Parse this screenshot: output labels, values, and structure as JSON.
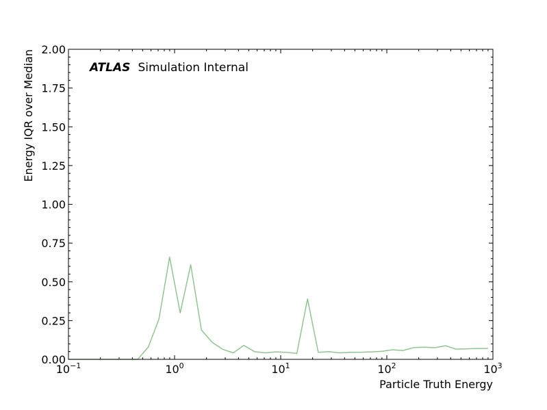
{
  "chart_data": {
    "type": "line",
    "title": "",
    "xlabel": "Particle Truth Energy",
    "ylabel": "Energy IQR over Median",
    "xscale": "log",
    "xlim": [
      0.1,
      1000
    ],
    "ylim": [
      0,
      2.0
    ],
    "xtick_values": [
      0.1,
      1,
      10,
      100,
      1000
    ],
    "xtick_labels": [
      {
        "base": "10",
        "exp": "−1"
      },
      {
        "base": "10",
        "exp": "0"
      },
      {
        "base": "10",
        "exp": "1"
      },
      {
        "base": "10",
        "exp": "2"
      },
      {
        "base": "10",
        "exp": "3"
      }
    ],
    "ytick_values": [
      0,
      0.25,
      0.5,
      0.75,
      1.0,
      1.25,
      1.5,
      1.75,
      2.0
    ],
    "ytick_labels": [
      "0.00",
      "0.25",
      "0.50",
      "0.75",
      "1.00",
      "1.25",
      "1.50",
      "1.75",
      "2.00"
    ],
    "grid": false,
    "annotation": {
      "bold": "ATLAS",
      "rest": "Simulation Internal"
    },
    "series": [
      {
        "color": "#8fc68f",
        "x": [
          0.1,
          0.126,
          0.159,
          0.2,
          0.252,
          0.318,
          0.4,
          0.45,
          0.566,
          0.713,
          0.897,
          1.13,
          1.42,
          1.79,
          2.26,
          2.84,
          3.57,
          4.5,
          5.66,
          7.13,
          8.97,
          11.3,
          14.2,
          17.9,
          22.6,
          28.4,
          35.7,
          45.0,
          56.6,
          71.3,
          89.7,
          113,
          142,
          179,
          226,
          284,
          357,
          450,
          566,
          713,
          900
        ],
        "y": [
          0.0,
          0.0,
          0.0,
          0.0,
          0.0,
          0.0,
          0.0,
          0.0,
          0.08,
          0.26,
          0.66,
          0.3,
          0.61,
          0.19,
          0.11,
          0.065,
          0.042,
          0.09,
          0.05,
          0.042,
          0.048,
          0.045,
          0.038,
          0.39,
          0.045,
          0.05,
          0.042,
          0.045,
          0.046,
          0.048,
          0.052,
          0.062,
          0.057,
          0.076,
          0.078,
          0.075,
          0.088,
          0.066,
          0.068,
          0.07,
          0.07
        ]
      }
    ]
  }
}
